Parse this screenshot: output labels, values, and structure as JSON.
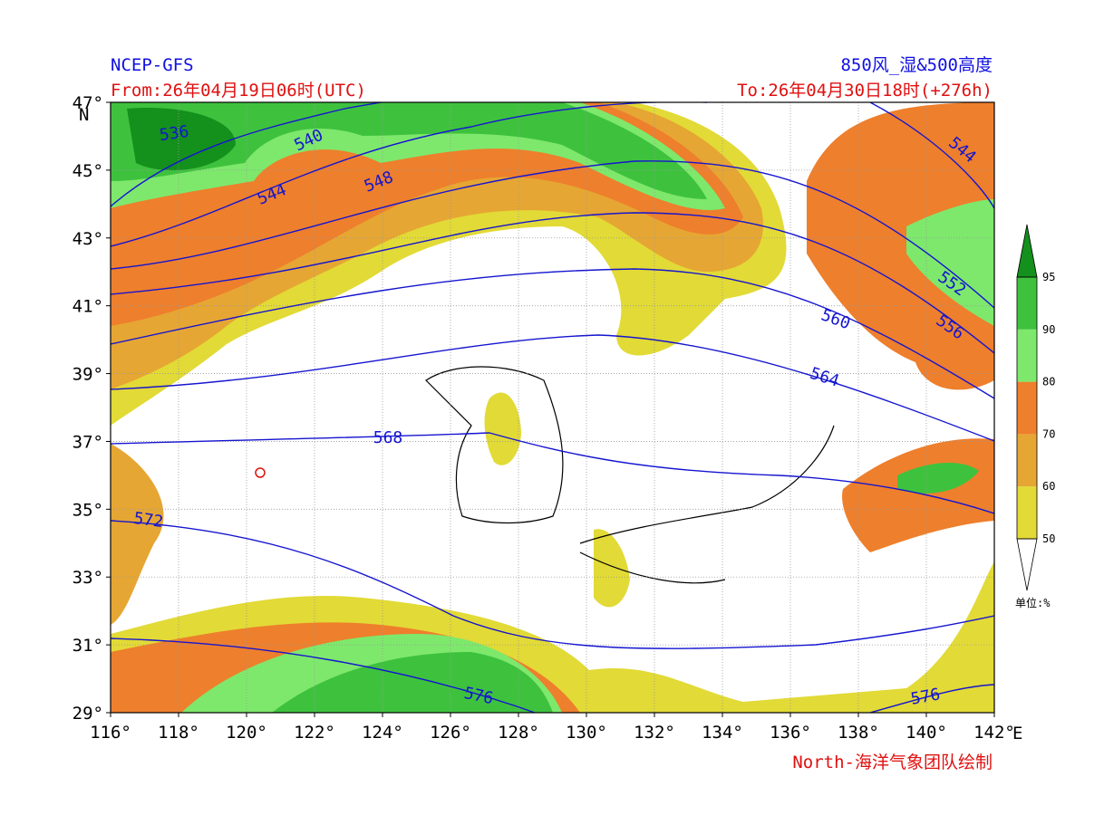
{
  "header": {
    "source": "NCEP-GFS",
    "product": "850风_湿&500高度",
    "from": "From:26年04月19日06时(UTC)",
    "to": "To:26年04月30日18时(+276h)"
  },
  "axes": {
    "lon_labels": [
      "116°",
      "118°",
      "120°",
      "122°",
      "124°",
      "126°",
      "128°",
      "130°",
      "132°",
      "134°",
      "136°",
      "138°",
      "140°",
      "142°"
    ],
    "lon_unit": "E",
    "lat_labels": [
      "29°",
      "31°",
      "33°",
      "35°",
      "37°",
      "39°",
      "41°",
      "43°",
      "45°",
      "47°"
    ],
    "lat_unit": "N"
  },
  "contour_labels": [
    "536",
    "540",
    "544",
    "548",
    "544",
    "552",
    "556",
    "560",
    "564",
    "568",
    "572",
    "576",
    "576"
  ],
  "colorbar": {
    "levels": [
      "50",
      "60",
      "70",
      "80",
      "90",
      "95"
    ],
    "colors": [
      "#e2da36",
      "#e6a633",
      "#ee7f2c",
      "#7ee86c",
      "#3ec23e",
      "#14901c"
    ],
    "unit": "单位:%"
  },
  "credit": "North-海洋气象团队绘制"
}
